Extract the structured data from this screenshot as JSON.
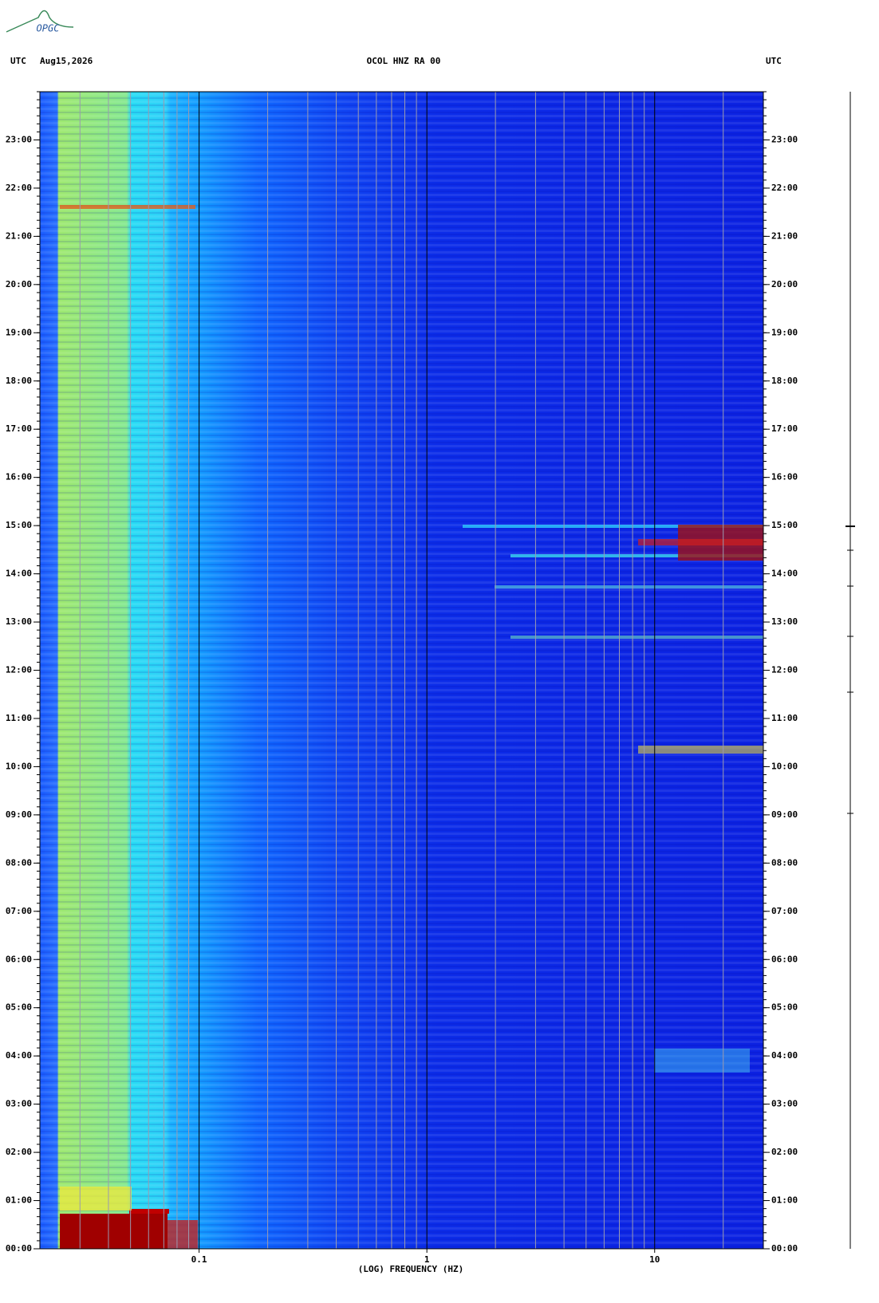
{
  "logo": "OPGC",
  "chart_data": {
    "type": "spectrogram",
    "title": "OCOL HNZ RA 00",
    "left_label": "UTC",
    "date": "Aug15,2026",
    "right_label": "UTC",
    "x_label": "(LOG) FREQUENCY (HZ)",
    "x_scale": "log",
    "xlim": [
      0.02,
      30
    ],
    "xticks": [
      0.1,
      1,
      10
    ],
    "x_minor_grid": [
      0.03,
      0.04,
      0.05,
      0.06,
      0.07,
      0.08,
      0.09,
      0.2,
      0.3,
      0.4,
      0.5,
      0.6,
      0.7,
      0.8,
      0.9,
      2,
      3,
      4,
      5,
      6,
      7,
      8,
      9,
      20
    ],
    "ylim": [
      0,
      24
    ],
    "yticks": [
      {
        "value": 0,
        "label": "00:00"
      },
      {
        "value": 1,
        "label": "01:00"
      },
      {
        "value": 2,
        "label": "02:00"
      },
      {
        "value": 3,
        "label": "03:00"
      },
      {
        "value": 4,
        "label": "04:00"
      },
      {
        "value": 5,
        "label": "05:00"
      },
      {
        "value": 6,
        "label": "06:00"
      },
      {
        "value": 7,
        "label": "07:00"
      },
      {
        "value": 8,
        "label": "08:00"
      },
      {
        "value": 9,
        "label": "09:00"
      },
      {
        "value": 10,
        "label": "10:00"
      },
      {
        "value": 11,
        "label": "11:00"
      },
      {
        "value": 12,
        "label": "12:00"
      },
      {
        "value": 13,
        "label": "13:00"
      },
      {
        "value": 14,
        "label": "14:00"
      },
      {
        "value": 15,
        "label": "15:00"
      },
      {
        "value": 16,
        "label": "16:00"
      },
      {
        "value": 17,
        "label": "17:00"
      },
      {
        "value": 18,
        "label": "18:00"
      },
      {
        "value": 19,
        "label": "19:00"
      },
      {
        "value": 20,
        "label": "20:00"
      },
      {
        "value": 21,
        "label": "21:00"
      },
      {
        "value": 22,
        "label": "22:00"
      },
      {
        "value": 23,
        "label": "23:00"
      }
    ]
  }
}
